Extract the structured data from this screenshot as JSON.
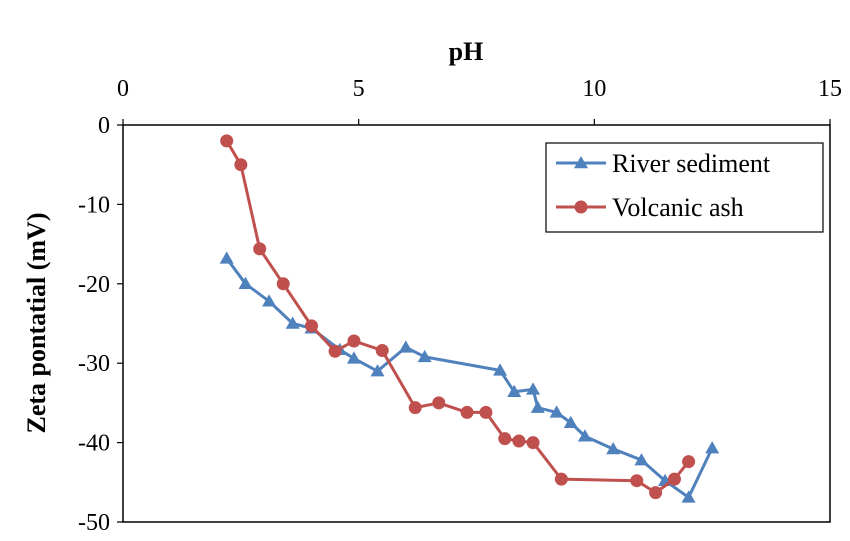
{
  "chart_data": {
    "type": "line",
    "title": "",
    "xlabel": "pH",
    "ylabel": "Zeta pontatial (mV)",
    "xlim": [
      0,
      15
    ],
    "ylim": [
      -50,
      0
    ],
    "x_ticks": [
      "0",
      "5",
      "10",
      "15"
    ],
    "y_ticks": [
      "0",
      "-10",
      "-20",
      "-30",
      "-40",
      "-50"
    ],
    "x_axis_position": "top",
    "grid": false,
    "legend_position": "top-right",
    "series": [
      {
        "name": "River sediment",
        "color": "#4F81BD",
        "marker": "triangle",
        "points": [
          [
            2.2,
            -16.8
          ],
          [
            2.6,
            -20.0
          ],
          [
            3.1,
            -22.2
          ],
          [
            3.6,
            -25.0
          ],
          [
            4.0,
            -25.6
          ],
          [
            4.6,
            -28.3
          ],
          [
            4.9,
            -29.4
          ],
          [
            5.4,
            -31.0
          ],
          [
            6.0,
            -28.0
          ],
          [
            6.4,
            -29.2
          ],
          [
            8.0,
            -30.9
          ],
          [
            8.3,
            -33.6
          ],
          [
            8.7,
            -33.3
          ],
          [
            8.8,
            -35.6
          ],
          [
            9.2,
            -36.2
          ],
          [
            9.5,
            -37.5
          ],
          [
            9.8,
            -39.2
          ],
          [
            10.4,
            -40.8
          ],
          [
            11.0,
            -42.2
          ],
          [
            11.5,
            -44.8
          ],
          [
            12.0,
            -46.9
          ],
          [
            12.5,
            -40.7
          ]
        ]
      },
      {
        "name": "Volcanic ash",
        "color": "#C0504D",
        "marker": "circle",
        "points": [
          [
            2.2,
            -2.0
          ],
          [
            2.5,
            -5.0
          ],
          [
            2.9,
            -15.6
          ],
          [
            3.4,
            -20.0
          ],
          [
            4.0,
            -25.3
          ],
          [
            4.5,
            -28.5
          ],
          [
            4.9,
            -27.2
          ],
          [
            5.5,
            -28.4
          ],
          [
            6.2,
            -35.6
          ],
          [
            6.7,
            -35.0
          ],
          [
            7.3,
            -36.2
          ],
          [
            7.7,
            -36.2
          ],
          [
            8.1,
            -39.5
          ],
          [
            8.4,
            -39.8
          ],
          [
            8.7,
            -40.0
          ],
          [
            9.3,
            -44.6
          ],
          [
            10.9,
            -44.8
          ],
          [
            11.3,
            -46.3
          ],
          [
            11.7,
            -44.6
          ],
          [
            12.0,
            -42.4
          ]
        ]
      }
    ]
  }
}
